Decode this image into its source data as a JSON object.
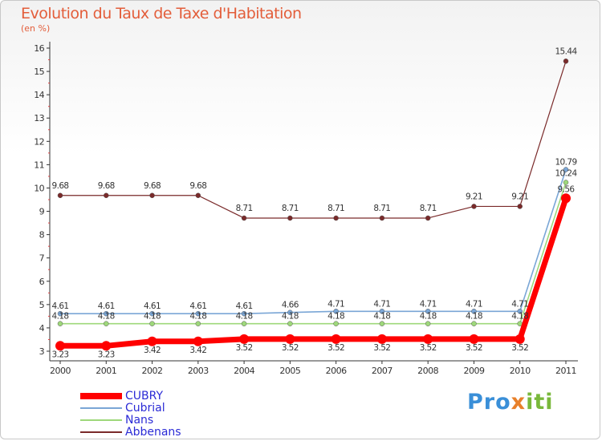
{
  "header": {
    "title": "Evolution du Taux de Taxe d'Habitation",
    "subtitle": "(en %)"
  },
  "logo": {
    "text": "Proxiti"
  },
  "chart_data": {
    "type": "line",
    "title": "Evolution du Taux de Taxe d'Habitation",
    "subtitle": "(en %)",
    "x": [
      "2000",
      "2001",
      "2002",
      "2003",
      "2004",
      "2005",
      "2006",
      "2007",
      "2008",
      "2009",
      "2010",
      "2011"
    ],
    "yticks": [
      "3",
      "4",
      "5",
      "6",
      "7",
      "8",
      "9",
      "10",
      "11",
      "12",
      "13",
      "14",
      "15",
      "16"
    ],
    "ylim": [
      3,
      16
    ],
    "grid": false,
    "legend_position": "bottom-left",
    "series": [
      {
        "name": "CUBRY",
        "color": "#ff0000",
        "values": [
          3.23,
          3.23,
          3.42,
          3.42,
          3.52,
          3.52,
          3.52,
          3.52,
          3.52,
          3.52,
          3.52,
          9.56
        ],
        "labels": [
          "3.23",
          "3.23",
          "3.42",
          "3.42",
          "3.52",
          "3.52",
          "3.52",
          "3.52",
          "3.52",
          "3.52",
          "3.52",
          "9.56"
        ]
      },
      {
        "name": "Cubrial",
        "color": "#7aa6d6",
        "values": [
          4.61,
          4.61,
          4.61,
          4.61,
          4.61,
          4.66,
          4.71,
          4.71,
          4.71,
          4.71,
          4.71,
          10.79
        ],
        "labels": [
          "4.61",
          "4.61",
          "4.61",
          "4.61",
          "4.61",
          "4.66",
          "4.71",
          "4.71",
          "4.71",
          "4.71",
          "4.71",
          "10.79"
        ]
      },
      {
        "name": "Nans",
        "color": "#9ed87a",
        "values": [
          4.18,
          4.18,
          4.18,
          4.18,
          4.18,
          4.18,
          4.18,
          4.18,
          4.18,
          4.18,
          4.18,
          10.24
        ],
        "labels": [
          "4.18",
          "4.18",
          "4.18",
          "4.18",
          "4.18",
          "4.18",
          "4.18",
          "4.18",
          "4.18",
          "4.18",
          "4.18",
          "10.24"
        ]
      },
      {
        "name": "Abbenans",
        "color": "#7a2a2a",
        "values": [
          9.68,
          9.68,
          9.68,
          9.68,
          8.71,
          8.71,
          8.71,
          8.71,
          8.71,
          9.21,
          9.21,
          15.44
        ],
        "labels": [
          "9.68",
          "9.68",
          "9.68",
          "9.68",
          "8.71",
          "8.71",
          "8.71",
          "8.71",
          "8.71",
          "9.21",
          "9.21",
          "15.44"
        ]
      }
    ]
  }
}
